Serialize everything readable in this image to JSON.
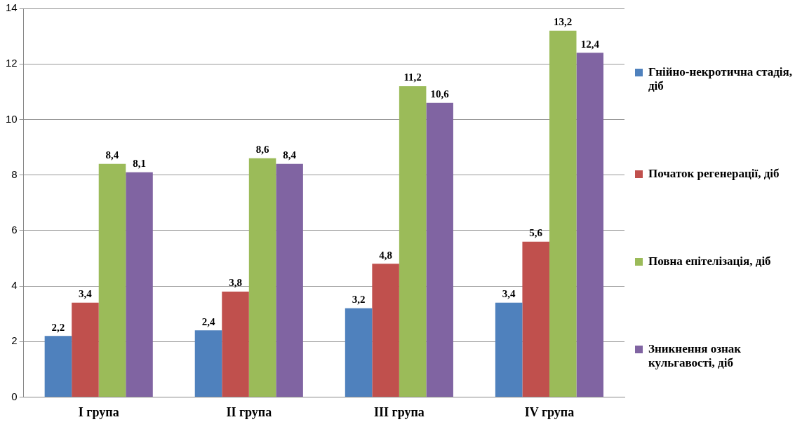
{
  "chart_data": {
    "type": "bar",
    "categories": [
      "I група",
      "II група",
      "III група",
      "IV група"
    ],
    "series": [
      {
        "name": "Гнійно-некротична стадія, діб",
        "color": "#4f81bd",
        "values": [
          2.2,
          2.4,
          3.2,
          3.4
        ],
        "value_labels": [
          "2,2",
          "2,4",
          "3,2",
          "3,4"
        ]
      },
      {
        "name": "Початок регенерації, діб",
        "color": "#c0504d",
        "values": [
          3.4,
          3.8,
          4.8,
          5.6
        ],
        "value_labels": [
          "3,4",
          "3,8",
          "4,8",
          "5,6"
        ]
      },
      {
        "name": "Повна епітелізація, діб",
        "color": "#9bbb59",
        "values": [
          8.4,
          8.6,
          11.2,
          13.2
        ],
        "value_labels": [
          "8,4",
          "8,6",
          "11,2",
          "13,2"
        ]
      },
      {
        "name": "Зникнення ознак кульгавості, діб",
        "color": "#8064a2",
        "values": [
          8.1,
          8.4,
          10.6,
          12.4
        ],
        "value_labels": [
          "8,1",
          "8,4",
          "10,6",
          "12,4"
        ]
      }
    ],
    "ylim": [
      0,
      14
    ],
    "yticks": [
      0,
      2,
      4,
      6,
      8,
      10,
      12,
      14
    ],
    "grid": "y",
    "legend": "right"
  }
}
